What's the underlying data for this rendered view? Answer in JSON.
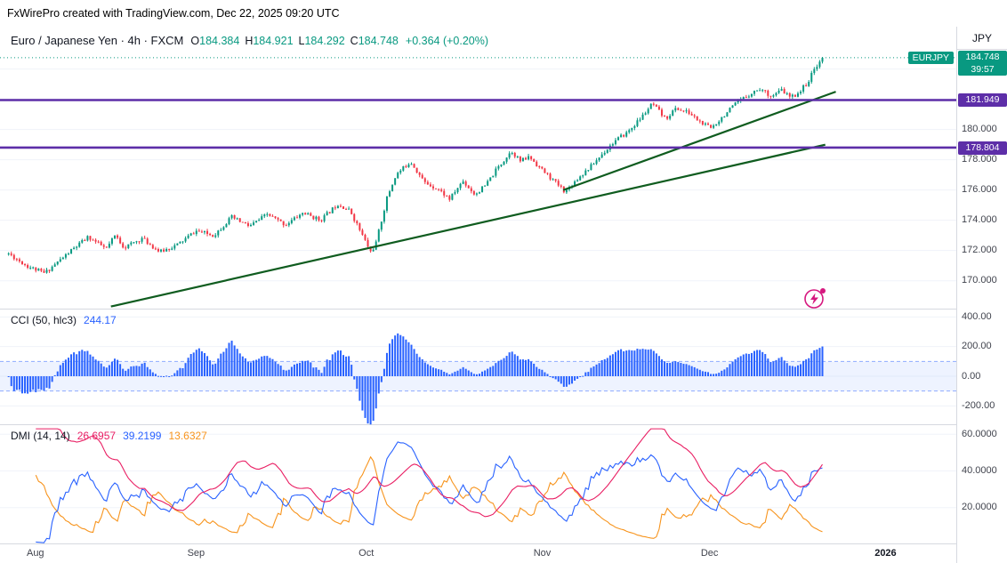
{
  "attribution": "FxWirePro created with TradingView.com, Dec 22, 2025 09:20 UTC",
  "legend": {
    "title_line": "Euro / Japanese Yen · 4h · FXCM",
    "ohlc": [
      {
        "label": "O",
        "value": "184.384"
      },
      {
        "label": "H",
        "value": "184.921"
      },
      {
        "label": "L",
        "value": "184.292"
      },
      {
        "label": "C",
        "value": "184.748"
      }
    ],
    "change": "+0.364 (+0.20%)"
  },
  "price_axis": {
    "unit": "JPY",
    "current": {
      "symbol_tag": "EURJPY",
      "price_label": "184.748",
      "countdown": "39:57"
    },
    "level_badges": [
      {
        "label": "181.949",
        "value": 181.949
      },
      {
        "label": "178.804",
        "value": 178.804
      }
    ],
    "ticks": [
      {
        "label": "180.000",
        "value": 180
      },
      {
        "label": "178.000",
        "value": 178
      },
      {
        "label": "176.000",
        "value": 176
      },
      {
        "label": "174.000",
        "value": 174
      },
      {
        "label": "172.000",
        "value": 172
      },
      {
        "label": "170.000",
        "value": 170
      }
    ]
  },
  "indicators": {
    "cci": {
      "title": "CCI (50, hlc3)",
      "value_label": "244.17",
      "ticks": [
        {
          "label": "400.00",
          "value": 400
        },
        {
          "label": "200.00",
          "value": 200
        },
        {
          "label": "0.00",
          "value": 0
        },
        {
          "label": "-200.00",
          "value": -200
        }
      ]
    },
    "dmi": {
      "title": "DMI (14, 14)",
      "values": [
        {
          "label": "26.6957",
          "series": "adx"
        },
        {
          "label": "39.2199",
          "series": "plus_di"
        },
        {
          "label": "13.6327",
          "series": "minus_di"
        }
      ],
      "ticks": [
        {
          "label": "60.0000",
          "value": 60
        },
        {
          "label": "40.0000",
          "value": 40
        },
        {
          "label": "20.0000",
          "value": 20
        }
      ]
    }
  },
  "time_axis": {
    "labels": [
      {
        "label": "Aug",
        "f": 0.037
      },
      {
        "label": "Sep",
        "f": 0.205
      },
      {
        "label": "Oct",
        "f": 0.383
      },
      {
        "label": "Nov",
        "f": 0.567
      },
      {
        "label": "Dec",
        "f": 0.742
      },
      {
        "label": "2026",
        "f": 0.926,
        "emphasis": true
      }
    ]
  },
  "icons": {
    "flash": "lightning-bolt-in-circle"
  },
  "chart_data": {
    "type": "candlestick",
    "symbol": "EURJPY",
    "interval": "4h",
    "title": "Euro / Japanese Yen 4h with CCI(50) and DMI(14,14)",
    "price_range": [
      168.1,
      186.8
    ],
    "price_grid": [
      184,
      182,
      180,
      178,
      176,
      174,
      172,
      170
    ],
    "current_price": 184.748,
    "hlines": [
      {
        "value": 181.949
      },
      {
        "value": 178.804
      }
    ],
    "trendlines": [
      {
        "x1f": 0.116,
        "p1": 168.3,
        "x2f": 0.863,
        "p2": 179.0
      },
      {
        "x1f": 0.589,
        "p1": 176.0,
        "x2f": 0.874,
        "p2": 182.5
      }
    ],
    "candles": {
      "count": 300,
      "seed": 11,
      "noise": 0.14,
      "wick_pad": 0.16,
      "x_start_f": 0.009,
      "x_end_f": 0.86
    },
    "price_keypoints": [
      [
        0.0,
        171.8
      ],
      [
        0.022,
        171.0
      ],
      [
        0.044,
        170.5
      ],
      [
        0.077,
        172.0
      ],
      [
        0.098,
        172.9
      ],
      [
        0.12,
        172.1
      ],
      [
        0.131,
        173.0
      ],
      [
        0.142,
        172.2
      ],
      [
        0.164,
        172.8
      ],
      [
        0.186,
        171.9
      ],
      [
        0.208,
        172.4
      ],
      [
        0.23,
        173.3
      ],
      [
        0.252,
        173.0
      ],
      [
        0.274,
        174.2
      ],
      [
        0.296,
        173.6
      ],
      [
        0.318,
        174.4
      ],
      [
        0.34,
        173.7
      ],
      [
        0.362,
        174.5
      ],
      [
        0.383,
        174.0
      ],
      [
        0.405,
        175.1
      ],
      [
        0.42,
        174.6
      ],
      [
        0.432,
        173.3
      ],
      [
        0.445,
        171.9
      ],
      [
        0.451,
        172.4
      ],
      [
        0.465,
        175.5
      ],
      [
        0.476,
        177.0
      ],
      [
        0.494,
        177.9
      ],
      [
        0.511,
        176.5
      ],
      [
        0.527,
        176.1
      ],
      [
        0.542,
        175.4
      ],
      [
        0.558,
        176.6
      ],
      [
        0.573,
        175.7
      ],
      [
        0.586,
        176.3
      ],
      [
        0.6,
        177.4
      ],
      [
        0.618,
        178.6
      ],
      [
        0.629,
        177.9
      ],
      [
        0.64,
        178.2
      ],
      [
        0.656,
        177.3
      ],
      [
        0.672,
        176.5
      ],
      [
        0.684,
        175.9
      ],
      [
        0.7,
        176.8
      ],
      [
        0.716,
        177.6
      ],
      [
        0.728,
        178.3
      ],
      [
        0.744,
        179.2
      ],
      [
        0.76,
        179.8
      ],
      [
        0.776,
        180.7
      ],
      [
        0.791,
        181.7
      ],
      [
        0.807,
        180.7
      ],
      [
        0.82,
        181.4
      ],
      [
        0.836,
        181.1
      ],
      [
        0.852,
        180.4
      ],
      [
        0.863,
        180.1
      ],
      [
        0.88,
        181.0
      ],
      [
        0.896,
        181.8
      ],
      [
        0.912,
        182.4
      ],
      [
        0.923,
        182.7
      ],
      [
        0.938,
        182.2
      ],
      [
        0.95,
        182.6
      ],
      [
        0.961,
        182.1
      ],
      [
        0.972,
        182.5
      ],
      [
        0.983,
        183.2
      ],
      [
        0.991,
        184.1
      ],
      [
        1.0,
        184.748
      ]
    ],
    "cci": {
      "period": 50,
      "source": "hlc3",
      "range": [
        -330,
        450
      ],
      "band": [
        -100,
        100
      ],
      "grid": [
        400,
        200,
        0,
        -200
      ],
      "last": 244.17
    },
    "dmi": {
      "period": 14,
      "smoothing": 14,
      "range": [
        0,
        65
      ],
      "grid": [
        60,
        40,
        20
      ],
      "last_adx": 26.6957,
      "last_plus_di": 39.2199,
      "last_minus_di": 13.6327
    },
    "colors": {
      "up": "#089981",
      "down": "#f23645",
      "hline": "#5d2ea8",
      "trend": "#0f5c1f",
      "cci_bar": "#2962ff",
      "cci_band_fill": "rgba(41,98,255,0.08)",
      "cci_band_edge": "rgba(41,98,255,0.5)",
      "adx": "#e91e63",
      "plus_di": "#2962ff",
      "minus_di": "#f7941d",
      "grid": "#f0f3fa",
      "current": "#089981",
      "flash": "#d6187f"
    }
  }
}
